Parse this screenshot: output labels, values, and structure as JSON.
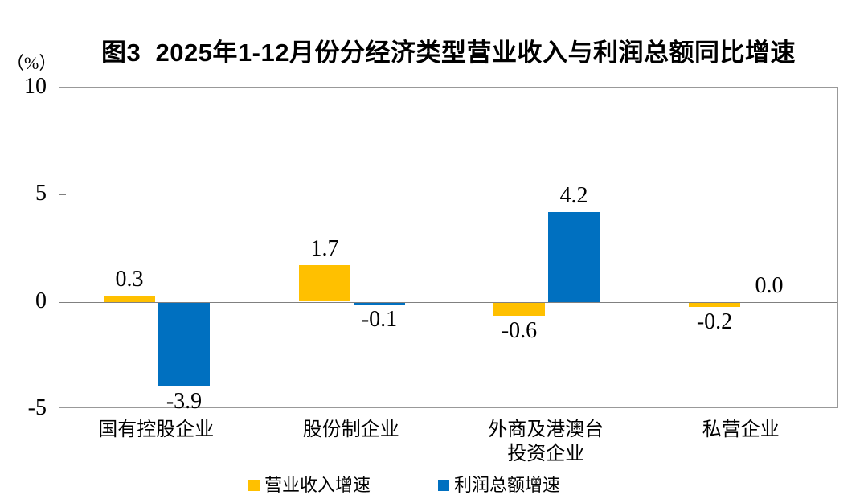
{
  "chart_data": {
    "type": "bar",
    "title": "图3  2025年1-12月份分经济类型营业收入与利润总额同比增速",
    "unit_label": "（%）",
    "categories": [
      "国有控股企业",
      "股份制企业",
      "外商及港澳台\n投资企业",
      "私营企业"
    ],
    "series": [
      {
        "name": "营业收入增速",
        "color": "#FFC000",
        "values": [
          0.3,
          1.7,
          -0.6,
          -0.2
        ]
      },
      {
        "name": "利润总额增速",
        "color": "#0070C0",
        "values": [
          -3.9,
          -0.1,
          4.2,
          0.0
        ]
      }
    ],
    "ylim": [
      -5,
      10
    ],
    "yticks": [
      10,
      5,
      0,
      -5
    ],
    "value_label_decimals": 1,
    "grid": false,
    "legend_position": "bottom"
  },
  "colors": {
    "bar_yellow": "#FFC000",
    "bar_blue": "#0070C0",
    "frame": "#999999",
    "zero_line": "#808080",
    "text": "#000000",
    "background": "#FFFFFF"
  }
}
